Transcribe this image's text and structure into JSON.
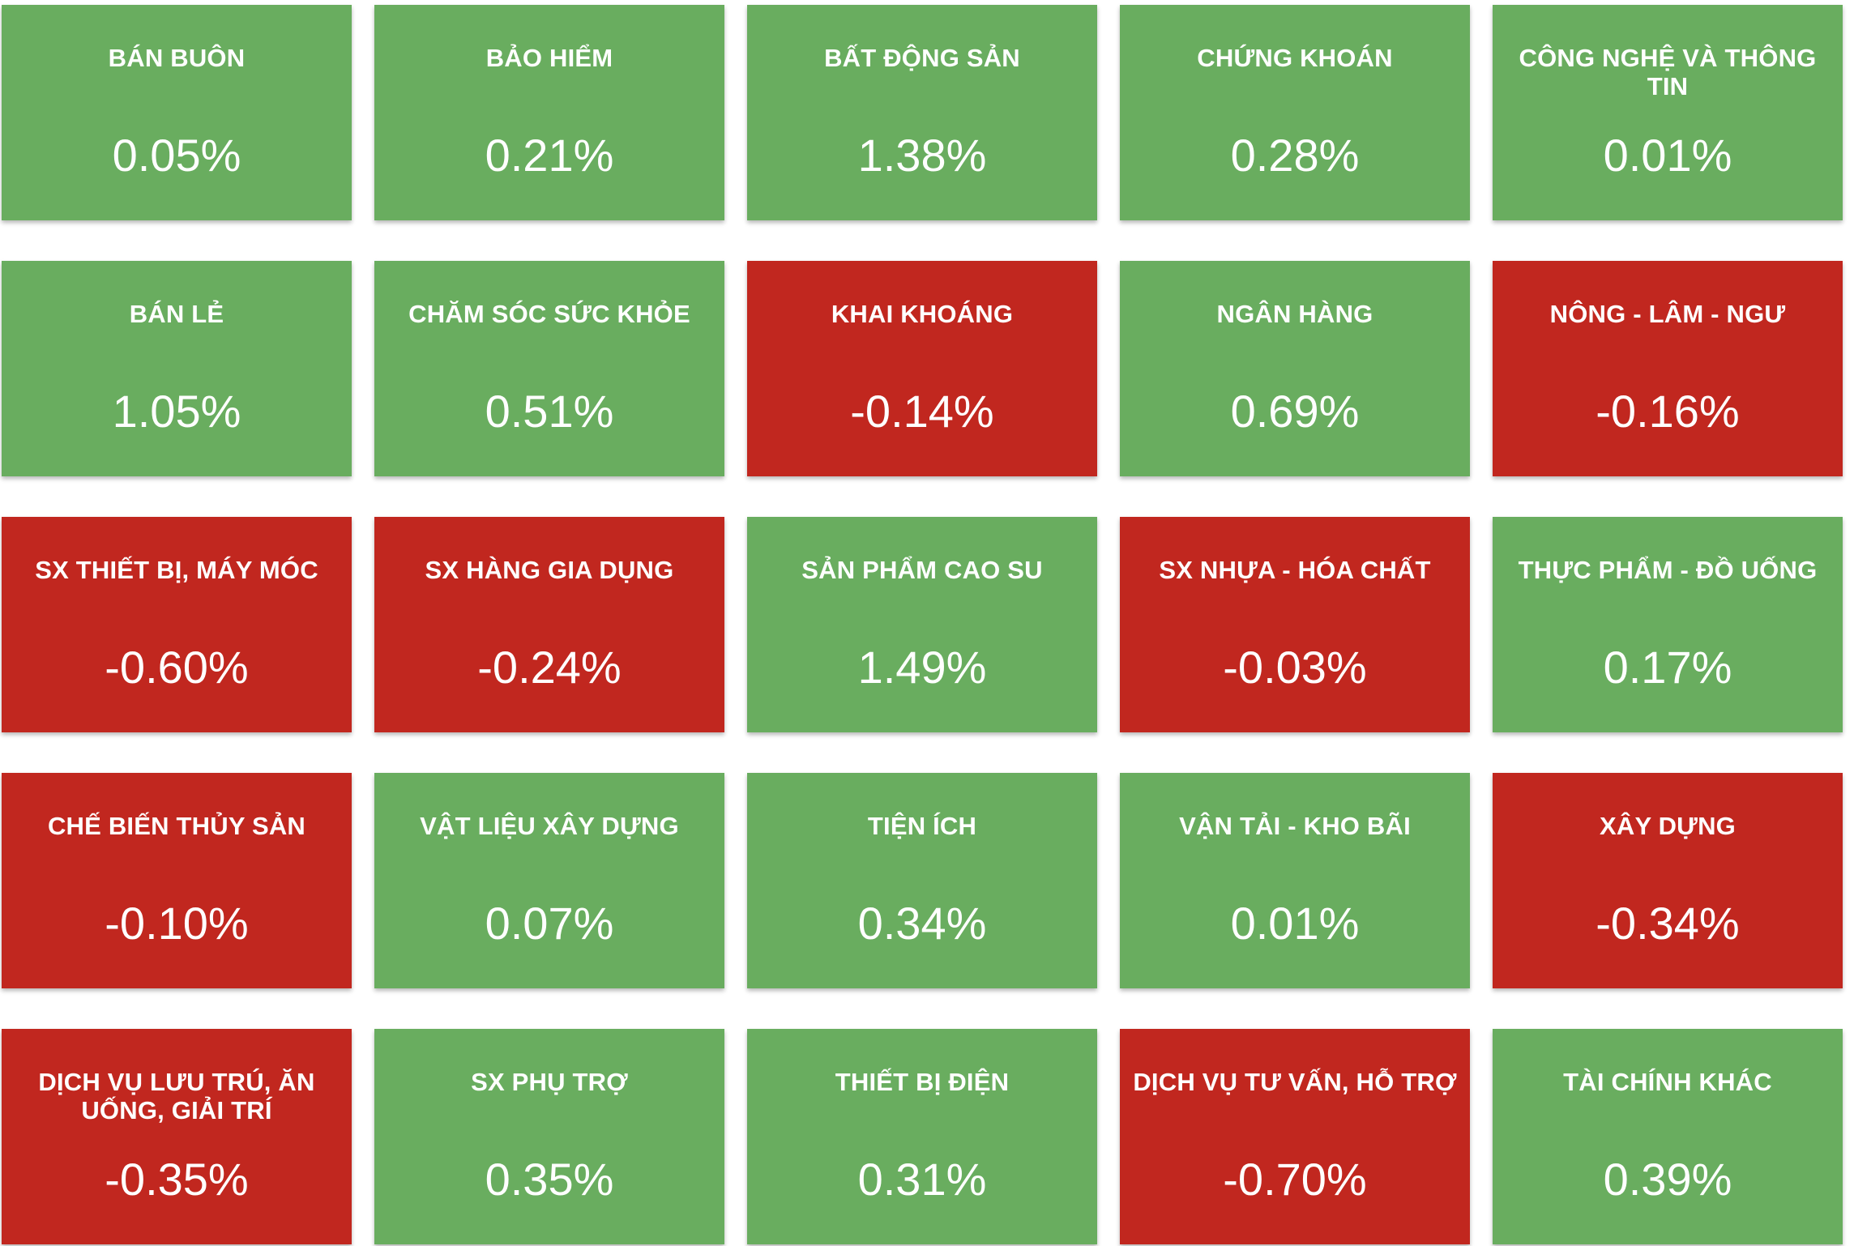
{
  "colors": {
    "positive": "#69ad5f",
    "negative": "#c1271f",
    "text": "#ffffff"
  },
  "sectors": [
    {
      "name": "BÁN BUÔN",
      "change": "0.05%",
      "direction": "up"
    },
    {
      "name": "BẢO HIỂM",
      "change": "0.21%",
      "direction": "up"
    },
    {
      "name": "BẤT ĐỘNG SẢN",
      "change": "1.38%",
      "direction": "up"
    },
    {
      "name": "CHỨNG KHOÁN",
      "change": "0.28%",
      "direction": "up"
    },
    {
      "name": "CÔNG NGHỆ VÀ THÔNG TIN",
      "change": "0.01%",
      "direction": "up"
    },
    {
      "name": "BÁN LẺ",
      "change": "1.05%",
      "direction": "up"
    },
    {
      "name": "CHĂM SÓC SỨC KHỎE",
      "change": "0.51%",
      "direction": "up"
    },
    {
      "name": "KHAI KHOÁNG",
      "change": "-0.14%",
      "direction": "down"
    },
    {
      "name": "NGÂN HÀNG",
      "change": "0.69%",
      "direction": "up"
    },
    {
      "name": "NÔNG - LÂM - NGƯ",
      "change": "-0.16%",
      "direction": "down"
    },
    {
      "name": "SX THIẾT BỊ, MÁY MÓC",
      "change": "-0.60%",
      "direction": "down"
    },
    {
      "name": "SX HÀNG GIA DỤNG",
      "change": "-0.24%",
      "direction": "down"
    },
    {
      "name": "SẢN PHẨM CAO SU",
      "change": "1.49%",
      "direction": "up"
    },
    {
      "name": "SX NHỰA - HÓA CHẤT",
      "change": "-0.03%",
      "direction": "down"
    },
    {
      "name": "THỰC PHẨM - ĐỒ UỐNG",
      "change": "0.17%",
      "direction": "up"
    },
    {
      "name": "CHẾ BIẾN THỦY SẢN",
      "change": "-0.10%",
      "direction": "down"
    },
    {
      "name": "VẬT LIỆU XÂY DỰNG",
      "change": "0.07%",
      "direction": "up"
    },
    {
      "name": "TIỆN ÍCH",
      "change": "0.34%",
      "direction": "up"
    },
    {
      "name": "VẬN TẢI - KHO BÃI",
      "change": "0.01%",
      "direction": "up"
    },
    {
      "name": "XÂY DỰNG",
      "change": "-0.34%",
      "direction": "down"
    },
    {
      "name": "DỊCH VỤ LƯU TRÚ, ĂN UỐNG, GIẢI TRÍ",
      "change": "-0.35%",
      "direction": "down"
    },
    {
      "name": "SX PHỤ TRỢ",
      "change": "0.35%",
      "direction": "up"
    },
    {
      "name": "THIẾT BỊ ĐIỆN",
      "change": "0.31%",
      "direction": "up"
    },
    {
      "name": "DỊCH VỤ TƯ VẤN, HỖ TRỢ",
      "change": "-0.70%",
      "direction": "down"
    },
    {
      "name": "TÀI CHÍNH KHÁC",
      "change": "0.39%",
      "direction": "up"
    }
  ]
}
